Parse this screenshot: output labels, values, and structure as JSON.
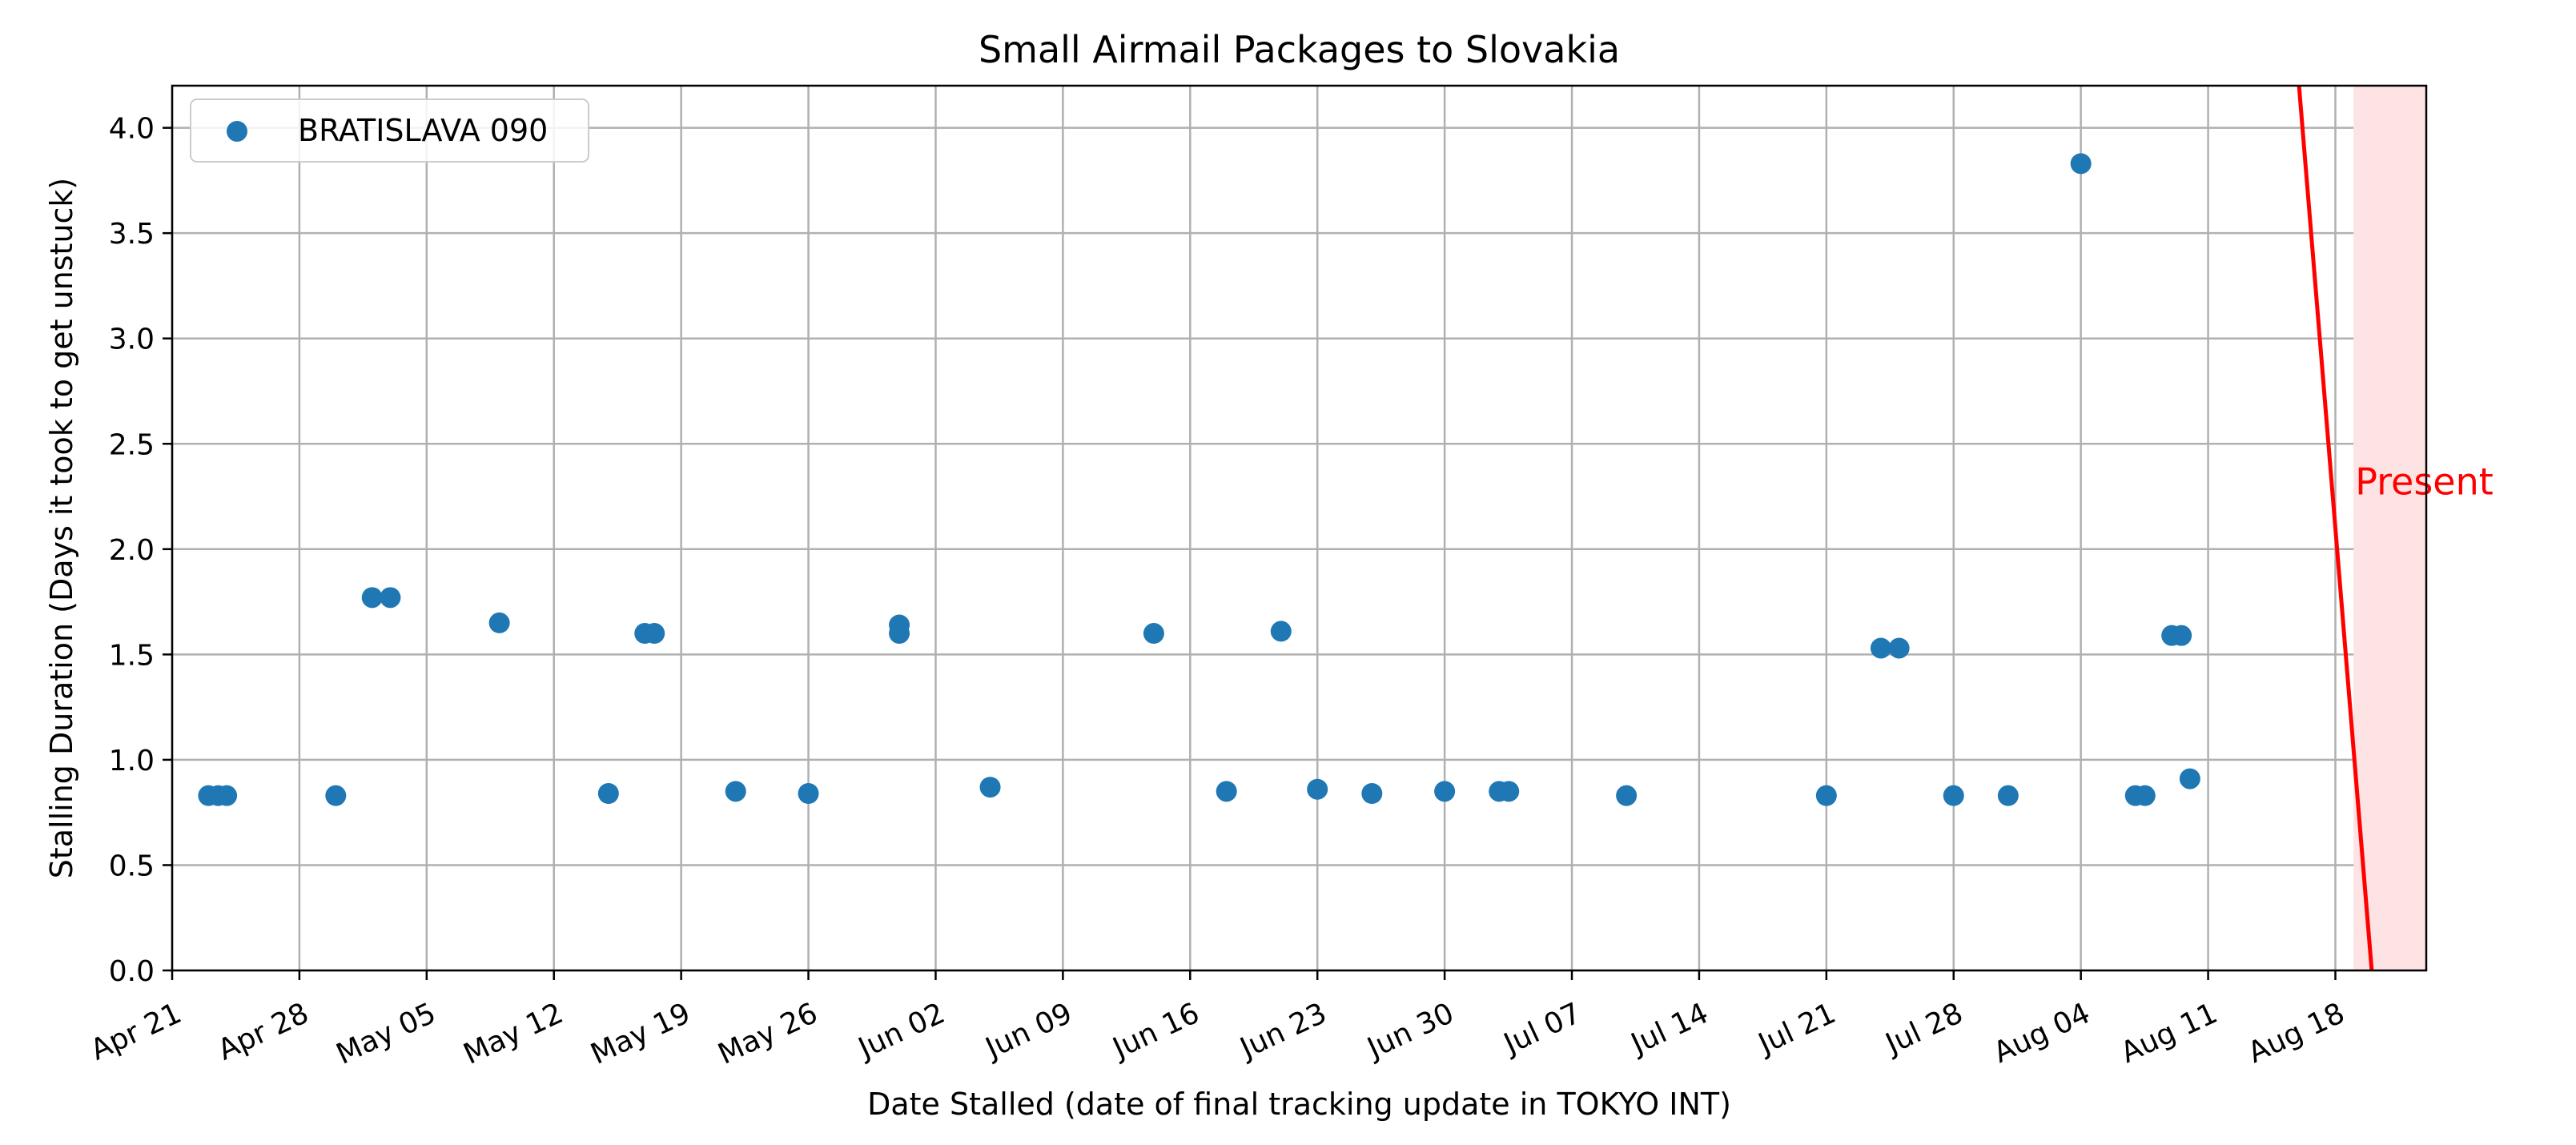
{
  "chart_data": {
    "type": "scatter",
    "title": "Small Airmail Packages to Slovakia",
    "xlabel": "Date Stalled (date of final tracking update in TOKYO INT)",
    "ylabel": "Stalling Duration (Days it took to get unstuck)",
    "x_axis_kind": "date",
    "xlim": [
      "Apr 21",
      "Aug 23"
    ],
    "ylim": [
      0,
      4.2
    ],
    "x_ticks": [
      "Apr 21",
      "Apr 28",
      "May 05",
      "May 12",
      "May 19",
      "May 26",
      "Jun 02",
      "Jun 09",
      "Jun 16",
      "Jun 23",
      "Jun 30",
      "Jul 07",
      "Jul 14",
      "Jul 21",
      "Jul 28",
      "Aug 04",
      "Aug 11",
      "Aug 18"
    ],
    "y_ticks": [
      "0.0",
      "0.5",
      "1.0",
      "1.5",
      "2.0",
      "2.5",
      "3.0",
      "3.5",
      "4.0"
    ],
    "grid": true,
    "legend_position": "top-left",
    "series": [
      {
        "name": "BRATISLAVA 090",
        "color": "#1f77b4",
        "points": [
          {
            "x": "Apr 23",
            "y": 0.83
          },
          {
            "x": "Apr 23",
            "y": 0.83
          },
          {
            "x": "Apr 24",
            "y": 0.83
          },
          {
            "x": "Apr 30",
            "y": 0.83
          },
          {
            "x": "May 02",
            "y": 1.77
          },
          {
            "x": "May 03",
            "y": 1.77
          },
          {
            "x": "May 09",
            "y": 1.65
          },
          {
            "x": "May 15",
            "y": 0.84
          },
          {
            "x": "May 17",
            "y": 1.6
          },
          {
            "x": "May 17",
            "y": 1.6
          },
          {
            "x": "May 22",
            "y": 0.85
          },
          {
            "x": "May 26",
            "y": 0.84
          },
          {
            "x": "May 31",
            "y": 1.64
          },
          {
            "x": "May 31",
            "y": 1.6
          },
          {
            "x": "Jun 05",
            "y": 0.87
          },
          {
            "x": "Jun 14",
            "y": 1.6
          },
          {
            "x": "Jun 18",
            "y": 0.85
          },
          {
            "x": "Jun 21",
            "y": 1.61
          },
          {
            "x": "Jun 23",
            "y": 0.86
          },
          {
            "x": "Jun 26",
            "y": 0.84
          },
          {
            "x": "Jun 30",
            "y": 0.85
          },
          {
            "x": "Jul 03",
            "y": 0.85
          },
          {
            "x": "Jul 03",
            "y": 0.85
          },
          {
            "x": "Jul 10",
            "y": 0.83
          },
          {
            "x": "Jul 21",
            "y": 0.83
          },
          {
            "x": "Jul 24",
            "y": 1.53
          },
          {
            "x": "Jul 25",
            "y": 1.53
          },
          {
            "x": "Jul 28",
            "y": 0.83
          },
          {
            "x": "Jul 31",
            "y": 0.83
          },
          {
            "x": "Aug 04",
            "y": 3.83
          },
          {
            "x": "Aug 07",
            "y": 0.83
          },
          {
            "x": "Aug 07",
            "y": 0.83
          },
          {
            "x": "Aug 09",
            "y": 1.59
          },
          {
            "x": "Aug 09",
            "y": 1.59
          },
          {
            "x": "Aug 10",
            "y": 0.91
          }
        ]
      }
    ],
    "annotations": [
      {
        "text": "Present",
        "color": "#ff0000",
        "shaded_region": {
          "from": "Aug 19",
          "to": "Aug 23",
          "fill": "#fde3e3"
        },
        "line": {
          "from": {
            "x": "Aug 16",
            "y": 4.2
          },
          "to": {
            "x": "Aug 20",
            "y": 0.0
          },
          "color": "#ff0000"
        },
        "text_anchor": {
          "x": "Aug 19",
          "y": 2.32
        }
      }
    ]
  }
}
